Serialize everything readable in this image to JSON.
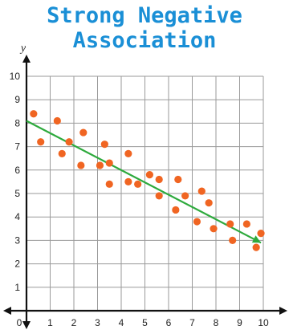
{
  "chart_data": {
    "type": "scatter",
    "title_lines": [
      "Strong Negative",
      "Association"
    ],
    "ylabel": "y",
    "xlabel": "",
    "xlim": [
      0,
      10
    ],
    "ylim": [
      0,
      10
    ],
    "x_ticks": [
      "0",
      "1",
      "2",
      "3",
      "4",
      "5",
      "6",
      "7",
      "8",
      "9",
      "10"
    ],
    "y_ticks": [
      "1",
      "2",
      "3",
      "4",
      "5",
      "6",
      "7",
      "8",
      "9",
      "10"
    ],
    "grid": true,
    "series": [
      {
        "points": [
          {
            "x": 0.3,
            "y": 8.4
          },
          {
            "x": 0.6,
            "y": 7.2
          },
          {
            "x": 1.3,
            "y": 8.1
          },
          {
            "x": 1.5,
            "y": 6.7
          },
          {
            "x": 1.8,
            "y": 7.2
          },
          {
            "x": 2.3,
            "y": 6.2
          },
          {
            "x": 2.4,
            "y": 7.6
          },
          {
            "x": 3.1,
            "y": 6.2
          },
          {
            "x": 3.3,
            "y": 7.1
          },
          {
            "x": 3.5,
            "y": 6.3
          },
          {
            "x": 3.5,
            "y": 5.4
          },
          {
            "x": 4.3,
            "y": 6.7
          },
          {
            "x": 4.3,
            "y": 5.5
          },
          {
            "x": 4.7,
            "y": 5.4
          },
          {
            "x": 5.2,
            "y": 5.8
          },
          {
            "x": 5.6,
            "y": 5.6
          },
          {
            "x": 5.6,
            "y": 4.9
          },
          {
            "x": 6.3,
            "y": 4.3
          },
          {
            "x": 6.4,
            "y": 5.6
          },
          {
            "x": 6.7,
            "y": 4.9
          },
          {
            "x": 7.2,
            "y": 3.8
          },
          {
            "x": 7.4,
            "y": 5.1
          },
          {
            "x": 7.7,
            "y": 4.6
          },
          {
            "x": 7.9,
            "y": 3.5
          },
          {
            "x": 8.6,
            "y": 3.7
          },
          {
            "x": 8.7,
            "y": 3.0
          },
          {
            "x": 9.3,
            "y": 3.7
          },
          {
            "x": 9.7,
            "y": 2.7
          },
          {
            "x": 9.9,
            "y": 3.3
          }
        ]
      }
    ],
    "trend_line": {
      "x1": 0,
      "y1": 8.1,
      "x2": 9.9,
      "y2": 2.9
    },
    "colors": {
      "title": "#1a8fd6",
      "points": "#f06522",
      "trend_line": "#2eaa3d",
      "grid": "#9a9a9a",
      "axis": "#111111"
    }
  }
}
